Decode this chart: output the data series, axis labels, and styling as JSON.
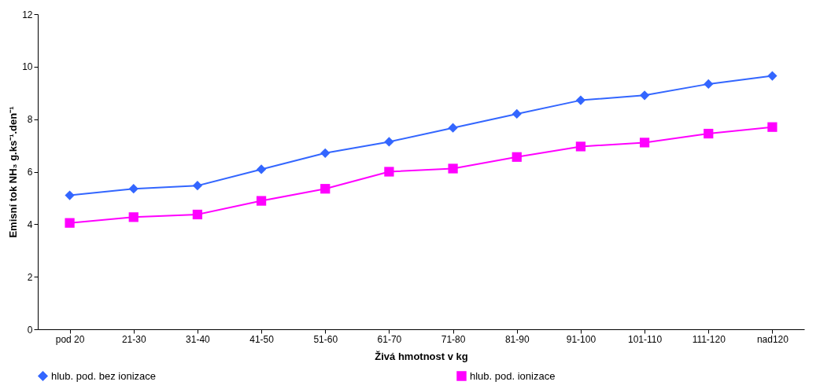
{
  "chart_data": {
    "type": "line",
    "xlabel": "Živá hmotnost v kg",
    "ylabel": "Emisní tok NH₃ g.ks⁻¹.den⁻¹",
    "categories": [
      "pod 20",
      "21-30",
      "31-40",
      "41-50",
      "51-60",
      "61-70",
      "71-80",
      "81-90",
      "91-100",
      "101-110",
      "111-120",
      "nad120"
    ],
    "series": [
      {
        "name": "hlub. pod. bez ionizace",
        "color": "#3366ff",
        "marker": "diamond",
        "values": [
          5.1,
          5.35,
          5.47,
          6.09,
          6.71,
          7.14,
          7.67,
          8.2,
          8.72,
          8.91,
          9.34,
          9.65
        ]
      },
      {
        "name": "hlub. pod. ionizace",
        "color": "#ff00ff",
        "marker": "square",
        "values": [
          4.05,
          4.27,
          4.37,
          4.89,
          5.35,
          6.0,
          6.12,
          6.56,
          6.96,
          7.11,
          7.45,
          7.7
        ]
      }
    ],
    "ylim": [
      0,
      12
    ],
    "yticks": [
      0,
      2,
      4,
      6,
      8,
      10,
      12
    ],
    "grid": false,
    "legend": "bottom",
    "line_style": "solid"
  }
}
